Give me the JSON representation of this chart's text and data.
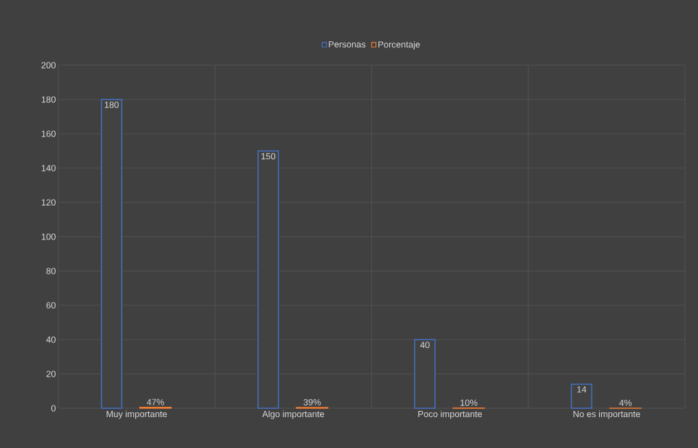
{
  "chart_data": {
    "type": "bar",
    "categories": [
      "Muy importante",
      "Algo importante",
      "Poco importante",
      "No es importante"
    ],
    "series": [
      {
        "name": "Personas",
        "color": "#4472c4",
        "values": [
          180,
          150,
          40,
          14
        ],
        "value_labels": [
          "180",
          "150",
          "40",
          "14"
        ]
      },
      {
        "name": "Porcentaje",
        "color": "#ed7d31",
        "values": [
          0.47,
          0.39,
          0.1,
          0.04
        ],
        "value_labels": [
          "47%",
          "39%",
          "10%",
          "4%"
        ]
      }
    ],
    "ylim": [
      0,
      200
    ],
    "yticks": [
      0,
      20,
      40,
      60,
      80,
      100,
      120,
      140,
      160,
      180,
      200
    ],
    "grid": true,
    "legend": "top"
  }
}
